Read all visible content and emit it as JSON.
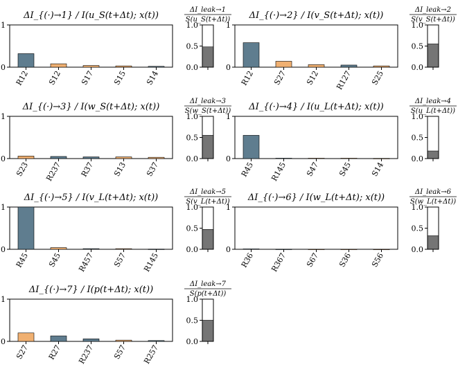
{
  "colors": {
    "blue": "#5f7d8f",
    "orange": "#f0b071",
    "leak_fill": "#757575"
  },
  "chart_data": [
    {
      "type": "bar",
      "title": "ΔI_{(·)→1} / I(u_S(t+Δt); x(t))",
      "ylim": [
        0,
        1
      ],
      "yticks": [
        "0",
        "1"
      ],
      "categories": [
        "R12",
        "S12",
        "S17",
        "S15",
        "S14"
      ],
      "values": [
        0.32,
        0.08,
        0.04,
        0.03,
        0.02
      ],
      "bar_colors": [
        "blue",
        "orange",
        "orange",
        "orange",
        "blue"
      ],
      "leak": {
        "title_num": "ΔI_leak→1",
        "title_den": "S(u_S(t+Δt))",
        "value": 0.48,
        "ylim": [
          0,
          1
        ],
        "yticks": [
          "0.0",
          "0.5",
          "1.0"
        ]
      }
    },
    {
      "type": "bar",
      "title": "ΔI_{(·)→2} / I(v_S(t+Δt); x(t))",
      "ylim": [
        0,
        1
      ],
      "yticks": [
        "0",
        "1"
      ],
      "categories": [
        "R12",
        "S27",
        "S12",
        "R127",
        "S25"
      ],
      "values": [
        0.58,
        0.14,
        0.06,
        0.05,
        0.03
      ],
      "bar_colors": [
        "blue",
        "orange",
        "orange",
        "blue",
        "orange"
      ],
      "leak": {
        "title_num": "ΔI_leak→2",
        "title_den": "S(v_S(t+Δt))",
        "value": 0.55,
        "ylim": [
          0,
          1
        ],
        "yticks": [
          "0.0",
          "0.5",
          "1.0"
        ]
      }
    },
    {
      "type": "bar",
      "title": "ΔI_{(·)→3} / I(w_S(t+Δt); x(t))",
      "ylim": [
        0,
        1
      ],
      "yticks": [
        "0",
        "1"
      ],
      "categories": [
        "S23",
        "R237",
        "R37",
        "S13",
        "S37"
      ],
      "values": [
        0.06,
        0.05,
        0.04,
        0.04,
        0.03
      ],
      "bar_colors": [
        "orange",
        "blue",
        "blue",
        "orange",
        "orange"
      ],
      "leak": {
        "title_num": "ΔI_leak→3",
        "title_den": "S(w_S(t+Δt))",
        "value": 0.55,
        "ylim": [
          0,
          1
        ],
        "yticks": [
          "0.0",
          "0.5",
          "1.0"
        ]
      }
    },
    {
      "type": "bar",
      "title": "ΔI_{(·)→4} / I(u_L(t+Δt); x(t))",
      "ylim": [
        0,
        1
      ],
      "yticks": [
        "0",
        "1"
      ],
      "categories": [
        "R45",
        "R145",
        "S47",
        "S45",
        "S14"
      ],
      "values": [
        0.55,
        0.01,
        0.01,
        0.01,
        0.005
      ],
      "bar_colors": [
        "blue",
        "blue",
        "orange",
        "orange",
        "orange"
      ],
      "leak": {
        "title_num": "ΔI_leak→4",
        "title_den": "S(u_L(t+Δt))",
        "value": 0.18,
        "ylim": [
          0,
          1
        ],
        "yticks": [
          "0.0",
          "0.5",
          "1.0"
        ]
      }
    },
    {
      "type": "bar",
      "title": "ΔI_{(·)→5} / I(v_L(t+Δt); x(t))",
      "ylim": [
        0,
        1
      ],
      "yticks": [
        "0",
        "1"
      ],
      "categories": [
        "R45",
        "S45",
        "R457",
        "S57",
        "R145"
      ],
      "values": [
        1.0,
        0.04,
        0.015,
        0.015,
        0.005
      ],
      "bar_colors": [
        "blue",
        "orange",
        "blue",
        "orange",
        "blue"
      ],
      "leak": {
        "title_num": "ΔI_leak→5",
        "title_den": "S(v_L(t+Δt))",
        "value": 0.47,
        "ylim": [
          0,
          1
        ],
        "yticks": [
          "0.0",
          "0.5",
          "1.0"
        ]
      }
    },
    {
      "type": "bar",
      "title": "ΔI_{(·)→6} / I(w_L(t+Δt); x(t))",
      "ylim": [
        0,
        1
      ],
      "yticks": [
        "0",
        "1"
      ],
      "categories": [
        "R36",
        "R367",
        "S67",
        "S36",
        "S56"
      ],
      "values": [
        0.01,
        0.004,
        0.003,
        0.003,
        0.002
      ],
      "bar_colors": [
        "blue",
        "blue",
        "orange",
        "orange",
        "orange"
      ],
      "leak": {
        "title_num": "ΔI_leak→6",
        "title_den": "S(w_L(t+Δt))",
        "value": 0.32,
        "ylim": [
          0,
          1
        ],
        "yticks": [
          "0.0",
          "0.5",
          "1.0"
        ]
      }
    },
    {
      "type": "bar",
      "title": "ΔI_{(·)→7} / I(p(t+Δt); x(t))",
      "ylim": [
        0,
        1
      ],
      "yticks": [
        "0",
        "1"
      ],
      "categories": [
        "S27",
        "R27",
        "R237",
        "S57",
        "R257"
      ],
      "values": [
        0.2,
        0.13,
        0.06,
        0.03,
        0.02
      ],
      "bar_colors": [
        "orange",
        "blue",
        "blue",
        "orange",
        "blue"
      ],
      "leak": {
        "title_num": "ΔI_leak→7",
        "title_den": "S(p(t+Δt))",
        "value": 0.5,
        "ylim": [
          0,
          1
        ],
        "yticks": [
          "0.0",
          "0.5",
          "1.0"
        ]
      }
    }
  ]
}
